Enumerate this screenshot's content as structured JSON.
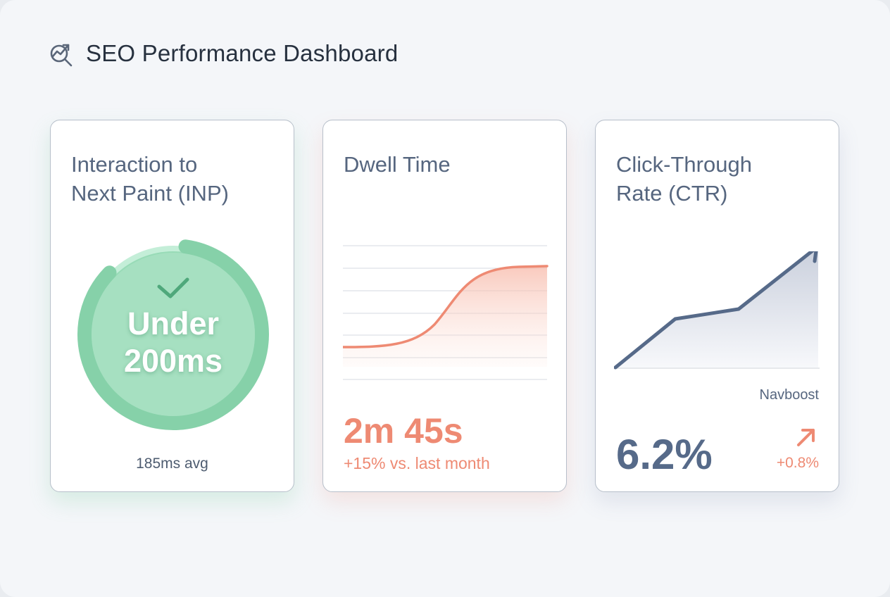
{
  "header": {
    "title": "SEO Performance Dashboard",
    "icon": "chart-search-icon"
  },
  "cards": [
    {
      "title_line1": "Interaction to",
      "title_line2": "Next Paint (INP)",
      "badge_line1": "Under",
      "badge_line2": "200ms",
      "badge_icon": "check-icon",
      "ring_fill_percent": 85,
      "subtitle": "185ms avg",
      "color": "#7fcfa5"
    },
    {
      "title_line1": "Dwell Time",
      "value": "2m 45s",
      "change": "+15% vs. last month",
      "color": "#ee8a73"
    },
    {
      "title_line1": "Click-Through",
      "title_line2": "Rate (CTR)",
      "chart_label": "Navboost",
      "value": "6.2%",
      "change": "+0.8%",
      "change_icon": "arrow-up-right-icon",
      "color": "#566a89"
    }
  ]
}
